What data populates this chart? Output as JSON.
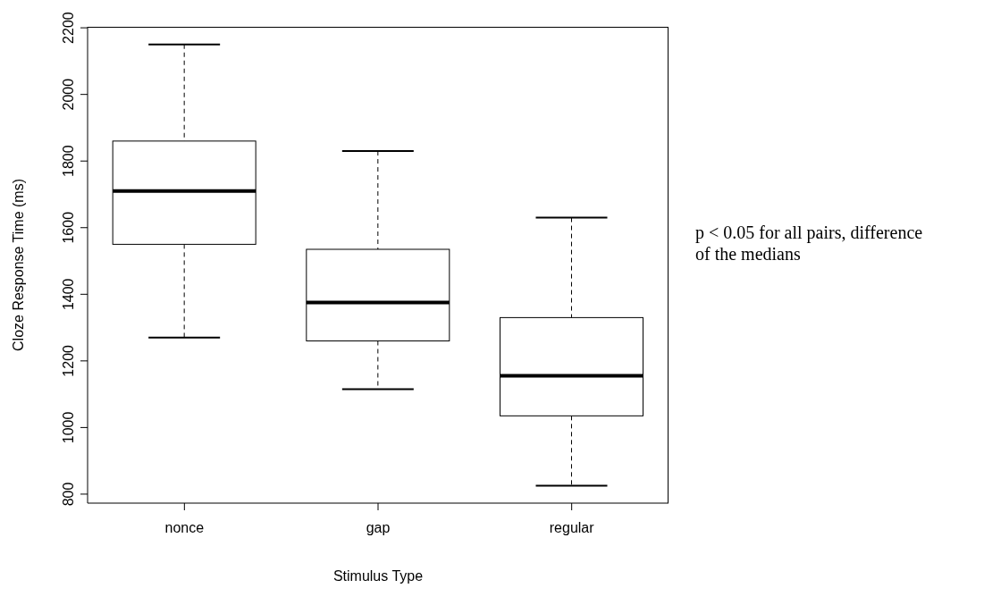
{
  "chart_data": {
    "type": "box",
    "xlabel": "Stimulus Type",
    "ylabel": "Cloze Response Time (ms)",
    "categories": [
      "nonce",
      "gap",
      "regular"
    ],
    "boxes": [
      {
        "low": 1270,
        "q1": 1550,
        "median": 1710,
        "q3": 1860,
        "high": 2150
      },
      {
        "low": 1115,
        "q1": 1260,
        "median": 1375,
        "q3": 1535,
        "high": 1830
      },
      {
        "low": 825,
        "q1": 1035,
        "median": 1155,
        "q3": 1330,
        "high": 1630
      }
    ],
    "ylim": [
      773,
      2203
    ],
    "yticks": [
      800,
      1000,
      1200,
      1400,
      1600,
      1800,
      2000,
      2200
    ],
    "grid": false,
    "legend": false,
    "annotations": [
      "p < 0.05 for all pairs, difference of the medians"
    ]
  }
}
